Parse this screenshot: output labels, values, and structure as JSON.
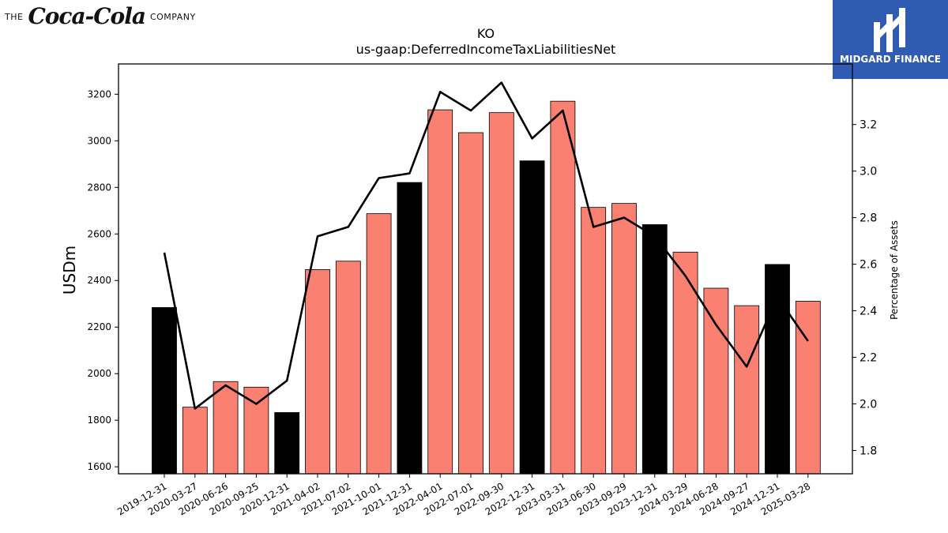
{
  "branding": {
    "left_logo": {
      "prefix": "THE",
      "script": "Coca-Cola",
      "suffix": "COMPANY"
    },
    "right_logo": {
      "name": "MIDGARD FINANCE"
    }
  },
  "chart_data": {
    "type": "bar",
    "title": "KO",
    "subtitle": "us-gaap:DeferredIncomeTaxLiabilitiesNet",
    "ylabel": "USDm",
    "y2label": "Percentage of Assets",
    "ylim": [
      1570,
      3330
    ],
    "y2lim": [
      1.7,
      3.46
    ],
    "yticks": [
      1600,
      1800,
      2000,
      2200,
      2400,
      2600,
      2800,
      3000,
      3200
    ],
    "y2ticks": [
      1.8,
      2.0,
      2.2,
      2.4,
      2.6,
      2.8,
      3.0,
      3.2
    ],
    "categories": [
      "2019-12-31",
      "2020-03-27",
      "2020-06-26",
      "2020-09-25",
      "2020-12-31",
      "2021-04-02",
      "2021-07-02",
      "2021-10-01",
      "2021-12-31",
      "2022-04-01",
      "2022-07-01",
      "2022-09-30",
      "2022-12-31",
      "2023-03-31",
      "2023-06-30",
      "2023-09-29",
      "2023-12-31",
      "2024-03-29",
      "2024-06-28",
      "2024-09-27",
      "2024-12-31",
      "2025-03-28"
    ],
    "bars": [
      {
        "value": 2284,
        "annual": true
      },
      {
        "value": 1856,
        "annual": false
      },
      {
        "value": 1966,
        "annual": false
      },
      {
        "value": 1942,
        "annual": false
      },
      {
        "value": 1833,
        "annual": true
      },
      {
        "value": 2447,
        "annual": false
      },
      {
        "value": 2483,
        "annual": false
      },
      {
        "value": 2687,
        "annual": false
      },
      {
        "value": 2821,
        "annual": true
      },
      {
        "value": 3133,
        "annual": false
      },
      {
        "value": 3035,
        "annual": false
      },
      {
        "value": 3121,
        "annual": false
      },
      {
        "value": 2914,
        "annual": true
      },
      {
        "value": 3170,
        "annual": false
      },
      {
        "value": 2714,
        "annual": false
      },
      {
        "value": 2731,
        "annual": false
      },
      {
        "value": 2640,
        "annual": true
      },
      {
        "value": 2522,
        "annual": false
      },
      {
        "value": 2367,
        "annual": false
      },
      {
        "value": 2292,
        "annual": false
      },
      {
        "value": 2469,
        "annual": true
      },
      {
        "value": 2311,
        "annual": false
      }
    ],
    "line": {
      "values": [
        2.65,
        1.98,
        2.08,
        2.0,
        2.1,
        2.72,
        2.76,
        2.97,
        2.99,
        3.34,
        3.26,
        3.38,
        3.14,
        3.26,
        2.76,
        2.8,
        2.72,
        2.55,
        2.34,
        2.16,
        2.46,
        2.27
      ]
    },
    "colors": {
      "annual": "#000000",
      "quarterly": "#fa8072",
      "line": "#000000"
    }
  }
}
